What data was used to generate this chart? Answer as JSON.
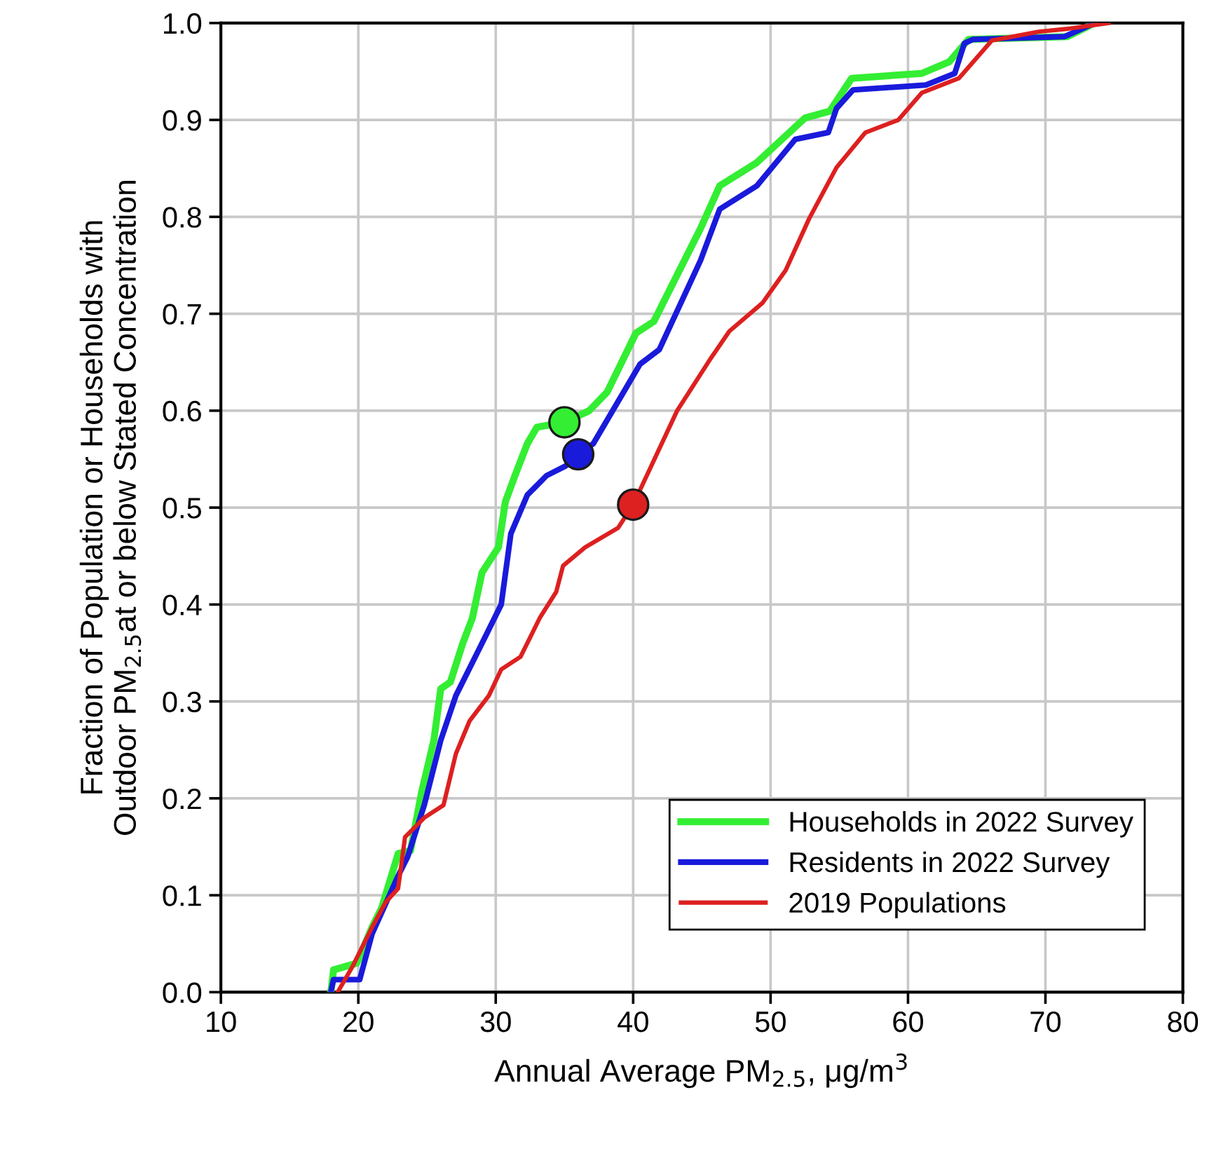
{
  "chart_data": {
    "type": "line",
    "xlabel": "Annual Average PM$_{2.5}$, μg/m$^{3}$",
    "ylabel": "Fraction of Population or Households with\nOutdoor PM$_{2.5}$at or below Stated Concentration",
    "xlim": [
      10,
      80
    ],
    "ylim": [
      0,
      1
    ],
    "xticks": [
      10,
      20,
      30,
      40,
      50,
      60,
      70,
      80
    ],
    "yticks": [
      {
        "value": 0,
        "label": "0.0"
      },
      0.1,
      0.2,
      0.3,
      0.4,
      0.5,
      0.6,
      0.7,
      0.8,
      0.9,
      {
        "value": 1,
        "label": "1.0"
      }
    ],
    "grid": true,
    "legend": "bottom right",
    "line_style": "solid",
    "series": [
      {
        "name": "Households in 2022 Survey",
        "color": "#33ee33",
        "x": [
          18.0,
          18.2,
          19.9,
          21.0,
          21.7,
          22.9,
          23.8,
          24.6,
          25.5,
          26.0,
          26.7,
          27.6,
          28.3,
          29.0,
          30.2,
          30.7,
          31.4,
          32.3,
          33.0,
          34.2,
          35.0,
          36.8,
          38.1,
          40.2,
          41.5,
          43.2,
          44.9,
          46.3,
          49.0,
          52.5,
          54.3,
          55.9,
          61.0,
          63.0,
          64.4,
          71.6,
          73.6
        ],
        "values": [
          0,
          0.023,
          0.03,
          0.067,
          0.087,
          0.143,
          0.146,
          0.206,
          0.26,
          0.313,
          0.32,
          0.36,
          0.386,
          0.433,
          0.459,
          0.506,
          0.533,
          0.566,
          0.583,
          0.586,
          0.588,
          0.6,
          0.619,
          0.68,
          0.692,
          0.74,
          0.788,
          0.832,
          0.856,
          0.902,
          0.909,
          0.943,
          0.948,
          0.96,
          0.983,
          0.986,
          1.0
        ]
      },
      {
        "name": "Residents in 2022 Survey",
        "color": "#1a1adb",
        "x": [
          18.0,
          18.2,
          20.1,
          21.0,
          22.9,
          23.6,
          24.8,
          26.0,
          27.1,
          29.0,
          30.4,
          31.1,
          32.3,
          33.7,
          35.1,
          36.0,
          37.1,
          40.5,
          41.9,
          44.9,
          46.3,
          49.0,
          51.8,
          54.2,
          54.8,
          56.0,
          61.3,
          63.4,
          64.1,
          64.7,
          71.4,
          73.6
        ],
        "values": [
          0,
          0.013,
          0.013,
          0.06,
          0.12,
          0.14,
          0.193,
          0.26,
          0.306,
          0.36,
          0.4,
          0.473,
          0.513,
          0.533,
          0.543,
          0.555,
          0.566,
          0.648,
          0.663,
          0.755,
          0.808,
          0.832,
          0.88,
          0.887,
          0.912,
          0.931,
          0.936,
          0.948,
          0.979,
          0.983,
          0.986,
          1.0
        ]
      },
      {
        "name": "2019 Populations",
        "color": "#dd2020",
        "x": [
          18.5,
          19.6,
          21.0,
          22.0,
          22.9,
          23.4,
          24.8,
          26.2,
          27.1,
          28.1,
          29.5,
          30.4,
          31.8,
          33.2,
          34.4,
          34.9,
          36.5,
          38.9,
          40.0,
          43.2,
          45.6,
          47.0,
          49.4,
          51.1,
          52.8,
          54.8,
          56.9,
          59.3,
          61.0,
          63.7,
          66.1,
          69.5,
          71.6,
          74.6
        ],
        "values": [
          0,
          0.027,
          0.067,
          0.093,
          0.107,
          0.16,
          0.18,
          0.193,
          0.246,
          0.28,
          0.306,
          0.333,
          0.346,
          0.386,
          0.413,
          0.44,
          0.459,
          0.479,
          0.503,
          0.6,
          0.653,
          0.682,
          0.711,
          0.745,
          0.798,
          0.851,
          0.887,
          0.9,
          0.928,
          0.943,
          0.982,
          0.991,
          0.994,
          1.0
        ]
      },
      {
        "type": "scatter",
        "color": "#33ee33",
        "x": [
          35.0
        ],
        "values": [
          0.588
        ],
        "marker": "circle"
      },
      {
        "type": "scatter",
        "color": "#1a1adb",
        "x": [
          36.0
        ],
        "values": [
          0.555
        ],
        "marker": "circle"
      },
      {
        "type": "scatter",
        "color": "#dd2020",
        "x": [
          40.0
        ],
        "values": [
          0.503
        ],
        "marker": "circle"
      }
    ]
  }
}
